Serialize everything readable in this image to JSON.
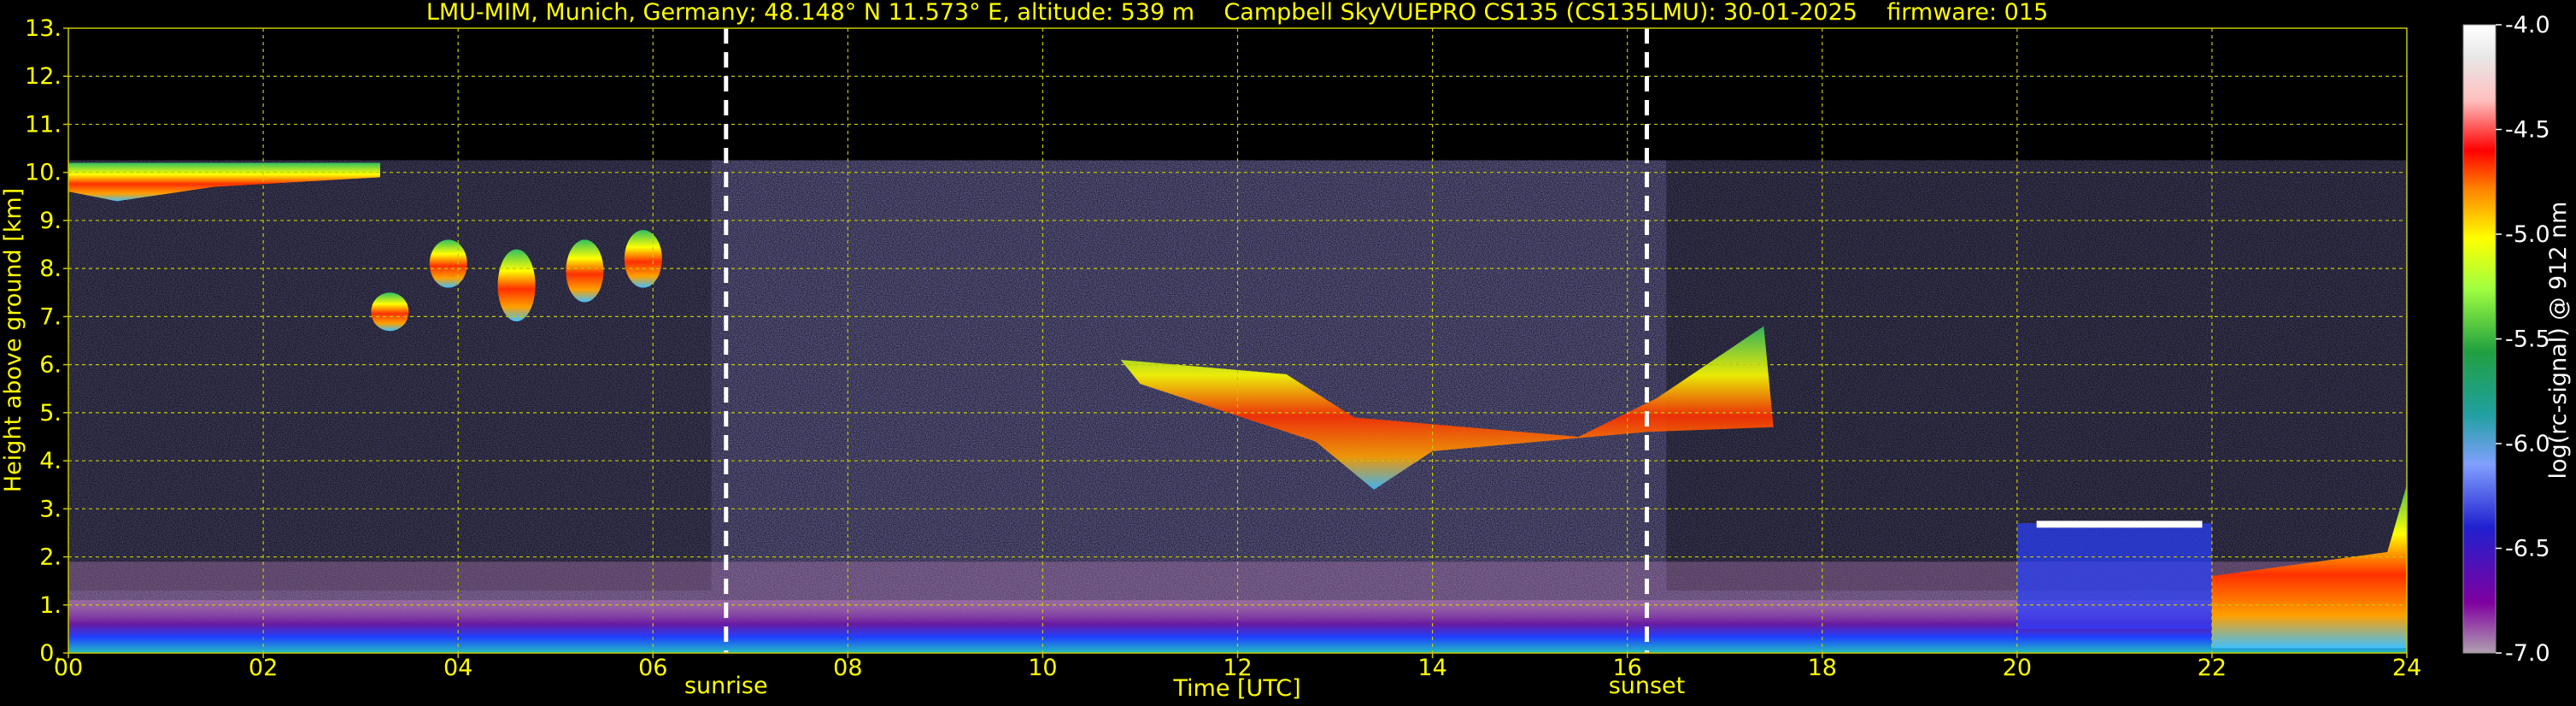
{
  "chart_data": {
    "type": "heatmap",
    "title": "LMU-MIM, Munich, Germany; 48.148° N 11.573° E, altitude: 539 m    Campbell SkyVUEPRO CS135 (CS135LMU): 30-01-2025    firmware: 015",
    "xlabel": "Time [UTC]",
    "ylabel": "Height above ground [km]",
    "xlim": [
      0,
      24
    ],
    "ylim": [
      0,
      13
    ],
    "x_ticks": [
      "00",
      "02",
      "04",
      "06",
      "08",
      "10",
      "12",
      "14",
      "16",
      "18",
      "20",
      "22",
      "24"
    ],
    "y_ticks": [
      "0.",
      "1.",
      "2.",
      "3.",
      "4.",
      "5.",
      "6.",
      "7.",
      "8.",
      "9.",
      "10.",
      "11.",
      "12.",
      "13."
    ],
    "grid": true,
    "markers": [
      {
        "label": "sunrise",
        "time": 6.75
      },
      {
        "label": "sunset",
        "time": 16.2
      }
    ],
    "colorbar": {
      "label": "log(rc-signal) @ 912 nm",
      "range": [
        -7.0,
        -4.0
      ],
      "ticks": [
        "-4.0",
        "-4.5",
        "-5.0",
        "-5.5",
        "-6.0",
        "-6.5",
        "-7.0"
      ]
    },
    "features": [
      {
        "name": "boundary-layer",
        "t": [
          0,
          24
        ],
        "h": [
          0,
          1.1
        ]
      },
      {
        "name": "high-cirrus",
        "t": [
          0,
          3.2
        ],
        "h": [
          9.4,
          10.2
        ]
      },
      {
        "name": "cirrus-streaks",
        "t": [
          3.2,
          6.3
        ],
        "h": [
          6.6,
          8.8
        ]
      },
      {
        "name": "mid-level-cloud",
        "t": [
          10.5,
          17.5
        ],
        "h": [
          3.3,
          7.0
        ]
      },
      {
        "name": "low-cloud",
        "t": [
          20.0,
          24.0
        ],
        "h": [
          0.2,
          3.5
        ]
      }
    ]
  },
  "colors": {
    "text": "#ffff00",
    "grid": "#c8c800",
    "background": "#000000"
  }
}
